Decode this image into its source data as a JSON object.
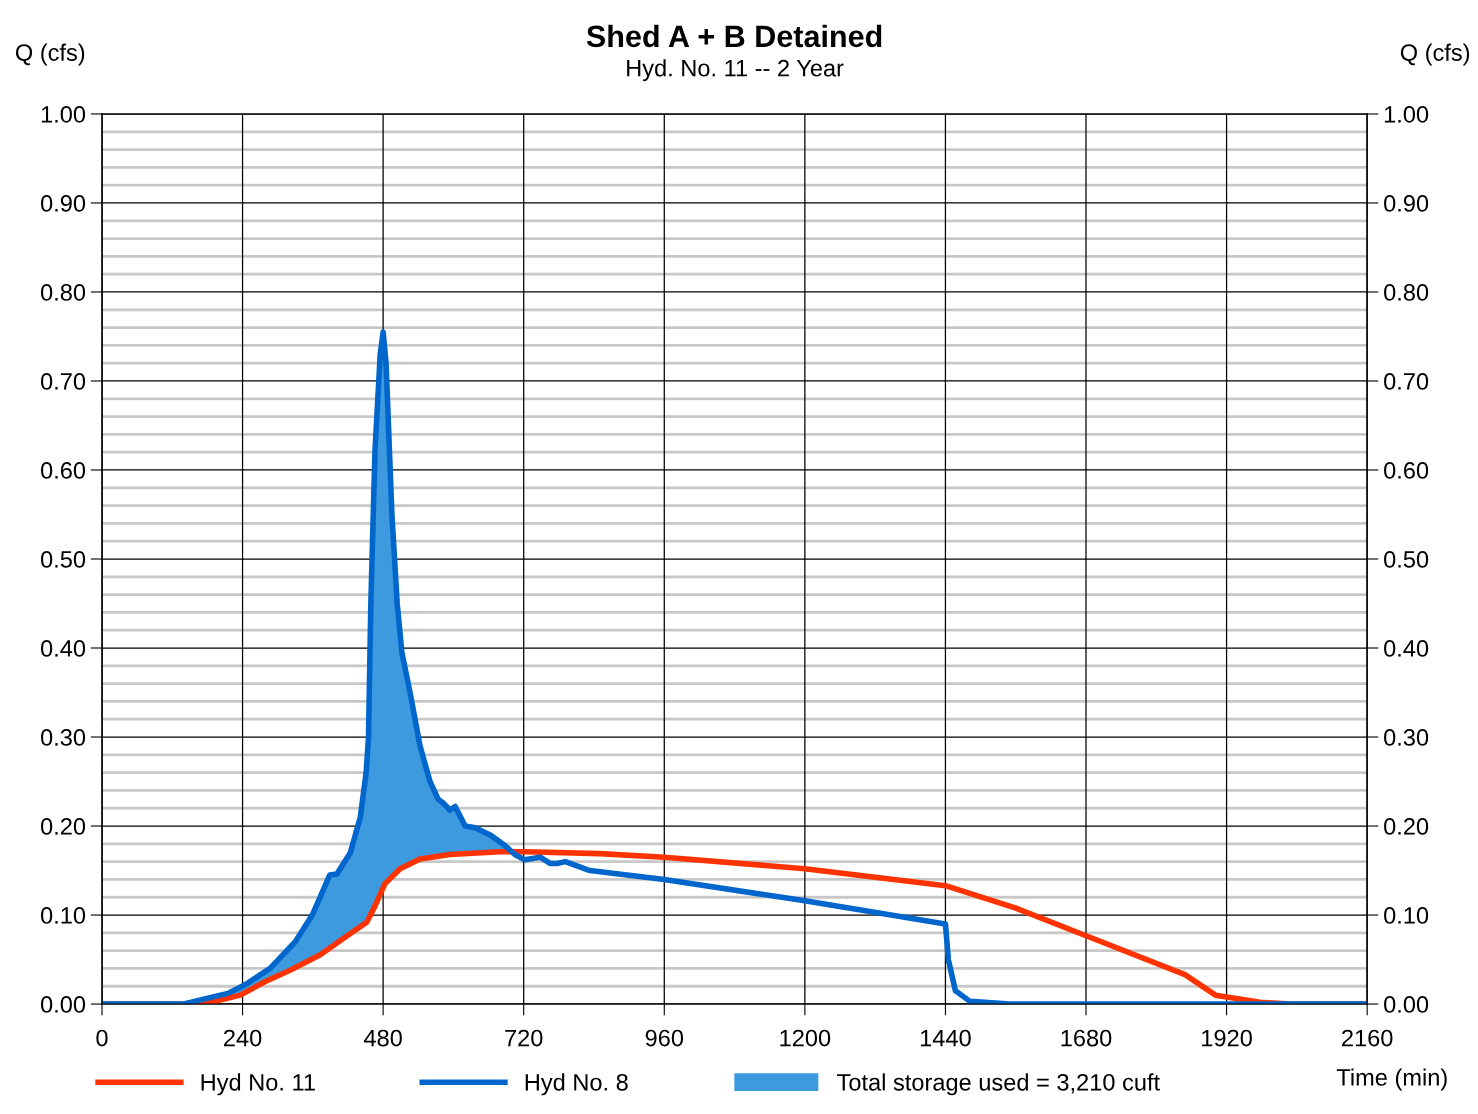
{
  "chart_data": {
    "type": "line",
    "title": "Shed A + B Detained",
    "subtitle": "Hyd. No. 11 -- 2 Year",
    "xlabel": "Time (min)",
    "ylabel": "Q (cfs)",
    "y2label": "Q (cfs)",
    "xlim": [
      0,
      2160
    ],
    "xticks": [
      0,
      240,
      480,
      720,
      960,
      1200,
      1440,
      1680,
      1920,
      2160
    ],
    "ylim": [
      0,
      1
    ],
    "yticks": [
      {
        "value": 0,
        "label": "0.00"
      },
      {
        "value": 0.1,
        "label": "0.10"
      },
      {
        "value": 0.2,
        "label": "0.20"
      },
      {
        "value": 0.3,
        "label": "0.30"
      },
      {
        "value": 0.4,
        "label": "0.40"
      },
      {
        "value": 0.5,
        "label": "0.50"
      },
      {
        "value": 0.6,
        "label": "0.60"
      },
      {
        "value": 0.7,
        "label": "0.70"
      },
      {
        "value": 0.8,
        "label": "0.80"
      },
      {
        "value": 0.9,
        "label": "0.90"
      },
      {
        "value": 1,
        "label": "1.00"
      }
    ],
    "y2lim": [
      0,
      1
    ],
    "y2ticks": [
      {
        "value": 0,
        "label": "0.00"
      },
      {
        "value": 0.1,
        "label": "0.10"
      },
      {
        "value": 0.2,
        "label": "0.20"
      },
      {
        "value": 0.3,
        "label": "0.30"
      },
      {
        "value": 0.4,
        "label": "0.40"
      },
      {
        "value": 0.5,
        "label": "0.50"
      },
      {
        "value": 0.6,
        "label": "0.60"
      },
      {
        "value": 0.7,
        "label": "0.70"
      },
      {
        "value": 0.8,
        "label": "0.80"
      },
      {
        "value": 0.9,
        "label": "0.90"
      },
      {
        "value": 1,
        "label": "1.00"
      }
    ],
    "grid": true,
    "legend": "bottom",
    "marker": "none",
    "line_style": "solid",
    "series": [
      {
        "name": "Hyd No. 11",
        "color": "#ff3300",
        "x": [
          0,
          150,
          193,
          236,
          278,
          321,
          372,
          415,
          452,
          466,
          483,
          509,
          543,
          594,
          680,
          722,
          850,
          960,
          1200,
          1440,
          1559,
          1679,
          1849,
          1901,
          1977,
          2029,
          2160
        ],
        "values": [
          0,
          0,
          0.003,
          0.01,
          0.025,
          0.038,
          0.055,
          0.075,
          0.092,
          0.11,
          0.135,
          0.152,
          0.163,
          0.168,
          0.171,
          0.171,
          0.169,
          0.165,
          0.152,
          0.133,
          0.108,
          0.077,
          0.033,
          0.01,
          0.002,
          0,
          0
        ]
      },
      {
        "name": "Hyd No. 8",
        "color": "#0066cc",
        "x": [
          0,
          140,
          170,
          215,
          245,
          287,
          330,
          359,
          389,
          401,
          424,
          441,
          451,
          455,
          459,
          466,
          475,
          480,
          485,
          495,
          504,
          512,
          526,
          543,
          560,
          574,
          584,
          594,
          603,
          620,
          637,
          663,
          688,
          705,
          722,
          748,
          765,
          777,
          791,
          833,
          960,
          1200,
          1440,
          1445,
          1457,
          1482,
          1550,
          2160
        ],
        "values": [
          0,
          0,
          0.005,
          0.012,
          0.022,
          0.04,
          0.07,
          0.1,
          0.145,
          0.146,
          0.17,
          0.21,
          0.26,
          0.3,
          0.45,
          0.62,
          0.73,
          0.755,
          0.72,
          0.55,
          0.45,
          0.395,
          0.35,
          0.29,
          0.25,
          0.23,
          0.225,
          0.218,
          0.222,
          0.2,
          0.198,
          0.19,
          0.178,
          0.168,
          0.162,
          0.165,
          0.158,
          0.158,
          0.16,
          0.15,
          0.14,
          0.116,
          0.09,
          0.05,
          0.015,
          0.003,
          0,
          0
        ]
      },
      {
        "name": "Total storage used = 3,210 cuft",
        "type": "area",
        "color": "#3d9ade",
        "x": [
          170,
          215,
          245,
          287,
          330,
          359,
          389,
          401,
          424,
          441,
          451,
          455,
          459,
          466,
          475,
          480,
          485,
          495,
          504,
          512,
          526,
          543,
          560,
          574,
          584,
          594,
          603,
          620,
          637,
          663,
          688
        ],
        "values": [
          0.005,
          0.012,
          0.022,
          0.04,
          0.07,
          0.1,
          0.145,
          0.146,
          0.17,
          0.21,
          0.26,
          0.3,
          0.45,
          0.62,
          0.73,
          0.755,
          0.72,
          0.55,
          0.45,
          0.395,
          0.35,
          0.29,
          0.25,
          0.23,
          0.225,
          0.218,
          0.222,
          0.2,
          0.198,
          0.19,
          0.178
        ]
      }
    ]
  }
}
